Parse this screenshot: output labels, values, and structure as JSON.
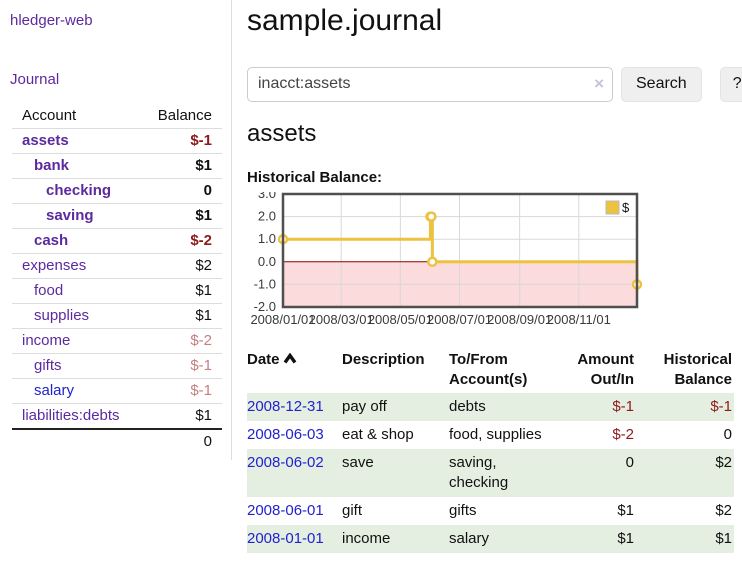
{
  "sidebar": {
    "brand": "hledger-web",
    "journal_link": "Journal",
    "accounts": {
      "col_account": "Account",
      "col_balance": "Balance",
      "rows": [
        {
          "name": "assets",
          "balance": "$-1",
          "row_class": "emph ind0",
          "bal_class": "neg",
          "name_class": ""
        },
        {
          "name": "bank",
          "balance": "$1",
          "row_class": "emph ind1",
          "bal_class": "",
          "name_class": ""
        },
        {
          "name": "checking",
          "balance": "0",
          "row_class": "emph ind2",
          "bal_class": "",
          "name_class": ""
        },
        {
          "name": "saving",
          "balance": "$1",
          "row_class": "emph ind2",
          "bal_class": "",
          "name_class": ""
        },
        {
          "name": "cash",
          "balance": "$-2",
          "row_class": "emph ind1",
          "bal_class": "neg",
          "name_class": ""
        },
        {
          "name": "expenses",
          "balance": "$2",
          "row_class": "ind0",
          "bal_class": "",
          "name_class": ""
        },
        {
          "name": "food",
          "balance": "$1",
          "row_class": "ind1",
          "bal_class": "",
          "name_class": ""
        },
        {
          "name": "supplies",
          "balance": "$1",
          "row_class": "ind1",
          "bal_class": "",
          "name_class": ""
        },
        {
          "name": "income",
          "balance": "$-2",
          "row_class": "ind0",
          "bal_class": "neg-soft",
          "name_class": ""
        },
        {
          "name": "gifts",
          "balance": "$-1",
          "row_class": "ind1",
          "bal_class": "neg-soft",
          "name_class": ""
        },
        {
          "name": "salary",
          "balance": "$-1",
          "row_class": "ind1",
          "bal_class": "neg-soft",
          "name_class": "blue"
        },
        {
          "name": "liabilities:debts",
          "balance": "$1",
          "row_class": "ind0",
          "bal_class": "",
          "name_class": ""
        }
      ],
      "total": "0"
    }
  },
  "header": {
    "title": "sample.journal"
  },
  "search": {
    "query": "inacct:assets",
    "clear_label": "×",
    "search_button": "Search",
    "help_button": "?"
  },
  "account_page": {
    "heading": "assets",
    "chart_title": "Historical Balance:"
  },
  "chart_data": {
    "type": "line",
    "title": "Historical Balance",
    "step": true,
    "legend": [
      {
        "label": "$",
        "color": "#edc240"
      }
    ],
    "legend_position": "top-right",
    "x_range": [
      "2008-01-01",
      "2008-12-31"
    ],
    "x_ticks": [
      "2008/01/01",
      "2008/03/01",
      "2008/05/01",
      "2008/07/01",
      "2008/09/01",
      "2008/11/01"
    ],
    "y_ticks": [
      3.0,
      2.0,
      1.0,
      0.0,
      -1.0,
      -2.0
    ],
    "ylim": [
      -2,
      3
    ],
    "grid": true,
    "points": [
      {
        "date": "2008-01-01",
        "value": 1
      },
      {
        "date": "2008-06-01",
        "value": 2
      },
      {
        "date": "2008-06-02",
        "value": 2
      },
      {
        "date": "2008-06-03",
        "value": 0
      },
      {
        "date": "2008-12-31",
        "value": -1
      }
    ],
    "line_color": "#edc240",
    "marker_fill": "#ffffff",
    "zero_line_color": "#8b0000",
    "negative_region_color": "#fbdbdb",
    "grid_color": "#d8d8d8",
    "frame_color": "#4f4f4f",
    "tick_label_color": "#3a3a3a"
  },
  "register": {
    "columns": [
      {
        "l1": "Date",
        "l2": ""
      },
      {
        "l1": "Description",
        "l2": ""
      },
      {
        "l1": "To/From",
        "l2": "Account(s)"
      },
      {
        "l1": "Amount",
        "l2": "Out/In"
      },
      {
        "l1": "Historical",
        "l2": "Balance"
      }
    ],
    "sort": {
      "column": "Date",
      "direction": "ascending"
    },
    "rows": [
      {
        "date": "2008-12-31",
        "description": "pay off",
        "accounts": "debts",
        "amount": "$-1",
        "balance": "$-1",
        "row_class": "shaded",
        "amount_class": "neg",
        "balance_class": "neg"
      },
      {
        "date": "2008-06-03",
        "description": "eat & shop",
        "accounts": "food, supplies",
        "amount": "$-2",
        "balance": "0",
        "row_class": "",
        "amount_class": "neg",
        "balance_class": ""
      },
      {
        "date": "2008-06-02",
        "description": "save",
        "accounts": "saving, checking",
        "amount": "0",
        "balance": "$2",
        "row_class": "shaded",
        "amount_class": "",
        "balance_class": ""
      },
      {
        "date": "2008-06-01",
        "description": "gift",
        "accounts": "gifts",
        "amount": "$1",
        "balance": "$2",
        "row_class": "",
        "amount_class": "",
        "balance_class": ""
      },
      {
        "date": "2008-01-01",
        "description": "income",
        "accounts": "salary",
        "amount": "$1",
        "balance": "$1",
        "row_class": "shaded",
        "amount_class": "",
        "balance_class": ""
      }
    ]
  }
}
